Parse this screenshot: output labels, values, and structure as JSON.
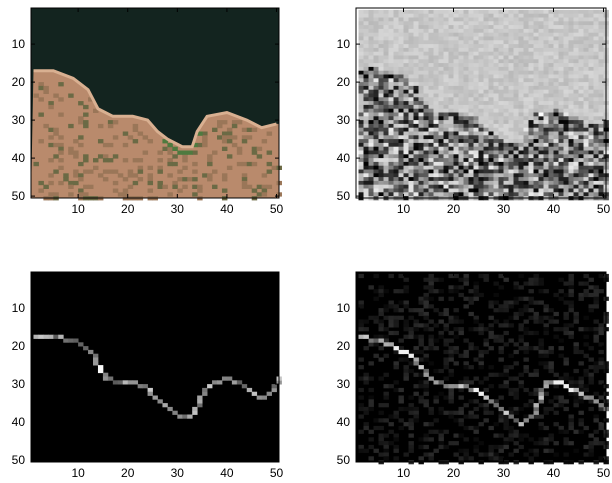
{
  "chart_data": [
    {
      "type": "heatmap",
      "panel": "top-left",
      "image_kind": "rgb",
      "xlim": [
        0.5,
        50.5
      ],
      "ylim": [
        0.5,
        50.5
      ],
      "xticks": [
        10,
        20,
        30,
        40,
        50
      ],
      "yticks": [
        10,
        20,
        30,
        40,
        50
      ],
      "xtick_labels": [
        "10",
        "20",
        "30",
        "40",
        "50"
      ],
      "ytick_labels": [
        "10",
        "20",
        "30",
        "40",
        "50"
      ],
      "y_reversed": true,
      "colors": {
        "water": "#13241f",
        "land": "#b98a6c",
        "edge": "#d9b091",
        "vegetation": "#4e7a3f"
      },
      "boundary": [
        [
          1,
          17
        ],
        [
          5,
          17
        ],
        [
          9,
          19
        ],
        [
          12,
          22
        ],
        [
          14,
          27
        ],
        [
          17,
          29
        ],
        [
          21,
          29
        ],
        [
          24,
          30
        ],
        [
          26,
          33
        ],
        [
          28,
          35
        ],
        [
          31,
          37
        ],
        [
          33,
          37
        ],
        [
          34,
          33
        ],
        [
          36,
          29
        ],
        [
          40,
          28
        ],
        [
          44,
          30
        ],
        [
          47,
          32
        ],
        [
          50,
          31
        ]
      ]
    },
    {
      "type": "heatmap",
      "panel": "top-right",
      "image_kind": "grayscale-noise",
      "xlim": [
        0.5,
        50.5
      ],
      "ylim": [
        0.5,
        50.5
      ],
      "xticks": [
        10,
        20,
        30,
        40,
        50
      ],
      "yticks": [
        10,
        20,
        30,
        40,
        50
      ],
      "xtick_labels": [
        "10",
        "20",
        "30",
        "40",
        "50"
      ],
      "ytick_labels": [
        "10",
        "20",
        "30",
        "40",
        "50"
      ],
      "y_reversed": true,
      "boundary": [
        [
          1,
          17
        ],
        [
          5,
          17
        ],
        [
          9,
          19
        ],
        [
          12,
          22
        ],
        [
          14,
          27
        ],
        [
          17,
          29
        ],
        [
          21,
          29
        ],
        [
          24,
          30
        ],
        [
          26,
          33
        ],
        [
          28,
          35
        ],
        [
          31,
          37
        ],
        [
          33,
          37
        ],
        [
          34,
          33
        ],
        [
          36,
          29
        ],
        [
          40,
          28
        ],
        [
          44,
          30
        ],
        [
          47,
          32
        ],
        [
          50,
          31
        ]
      ]
    },
    {
      "type": "heatmap",
      "panel": "bottom-left",
      "image_kind": "edge-map",
      "xlim": [
        0.5,
        50.5
      ],
      "ylim": [
        0.5,
        50.5
      ],
      "xticks": [
        10,
        20,
        30,
        40,
        50
      ],
      "yticks": [
        10,
        20,
        30,
        40,
        50
      ],
      "xtick_labels": [
        "10",
        "20",
        "30",
        "40",
        "50"
      ],
      "ytick_labels": [
        "10",
        "20",
        "30",
        "40",
        "50"
      ],
      "y_reversed": true,
      "edge_path": [
        [
          1,
          17
        ],
        [
          5,
          17
        ],
        [
          9,
          18
        ],
        [
          12,
          21
        ],
        [
          13,
          23
        ],
        [
          14,
          26
        ],
        [
          15,
          28
        ],
        [
          18,
          29
        ],
        [
          21,
          29
        ],
        [
          23,
          30
        ],
        [
          24,
          32
        ],
        [
          26,
          34
        ],
        [
          28,
          36
        ],
        [
          30,
          38
        ],
        [
          32,
          38
        ],
        [
          33,
          37
        ],
        [
          34,
          34
        ],
        [
          35,
          31
        ],
        [
          37,
          29
        ],
        [
          40,
          28
        ],
        [
          43,
          30
        ],
        [
          46,
          33
        ],
        [
          48,
          32
        ],
        [
          50,
          28
        ]
      ]
    },
    {
      "type": "heatmap",
      "panel": "bottom-right",
      "image_kind": "edge-map-noisy",
      "xlim": [
        0.5,
        50.5
      ],
      "ylim": [
        0.5,
        50.5
      ],
      "xticks": [
        10,
        20,
        30,
        40,
        50
      ],
      "yticks": [
        10,
        20,
        30,
        40,
        50
      ],
      "xtick_labels": [
        "10",
        "20",
        "30",
        "40",
        "50"
      ],
      "ytick_labels": [
        "10",
        "20",
        "30",
        "40",
        "50"
      ],
      "y_reversed": true,
      "edge_path": [
        [
          1,
          17
        ],
        [
          5,
          18
        ],
        [
          8,
          20
        ],
        [
          11,
          22
        ],
        [
          13,
          25
        ],
        [
          15,
          28
        ],
        [
          18,
          30
        ],
        [
          21,
          30
        ],
        [
          24,
          31
        ],
        [
          27,
          34
        ],
        [
          30,
          37
        ],
        [
          33,
          40
        ],
        [
          36,
          37
        ],
        [
          37,
          32
        ],
        [
          38,
          29
        ],
        [
          41,
          29
        ],
        [
          45,
          32
        ],
        [
          48,
          34
        ],
        [
          50,
          36
        ]
      ]
    }
  ]
}
